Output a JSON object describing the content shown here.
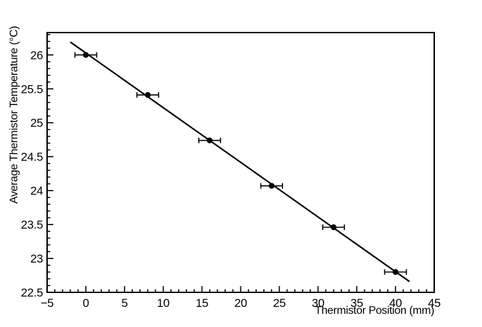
{
  "canvas": {
    "background": "#ffffff",
    "ink": "#000000"
  },
  "chart_data": {
    "type": "scatter",
    "title": "",
    "xlabel": "Thermistor Position (mm)",
    "ylabel": "Average Thermistor Temperature (°C)",
    "xlim": [
      -5,
      45
    ],
    "ylim": [
      22.5,
      26.33
    ],
    "grid": false,
    "legend": "none",
    "ticks_inward": true,
    "x_major_ticks": [
      -5,
      0,
      5,
      10,
      15,
      20,
      25,
      30,
      35,
      40,
      45
    ],
    "x_tick_labels": [
      "−5",
      "0",
      "5",
      "10",
      "15",
      "20",
      "25",
      "30",
      "35",
      "40",
      "45"
    ],
    "x_minor_step": 1,
    "y_major_ticks": [
      22.5,
      23,
      23.5,
      24,
      24.5,
      25,
      25.5,
      26
    ],
    "y_tick_labels": [
      "22.5",
      "23",
      "23.5",
      "24",
      "24.5",
      "25",
      "25.5",
      "26"
    ],
    "y_minor_step": 0.1,
    "series": [
      {
        "name": "measured data",
        "type": "scatter",
        "marker": "filled-circle",
        "color": "#000000",
        "x": [
          0,
          8,
          16,
          24,
          32,
          40
        ],
        "y": [
          26.0,
          25.41,
          24.74,
          24.07,
          23.46,
          22.8
        ],
        "x_err": [
          1.4,
          1.4,
          1.4,
          1.4,
          1.4,
          1.4
        ]
      },
      {
        "name": "linear fit",
        "type": "line",
        "color": "#000000",
        "x": [
          -2.0,
          41.8
        ],
        "y": [
          26.19,
          22.66
        ]
      }
    ]
  }
}
